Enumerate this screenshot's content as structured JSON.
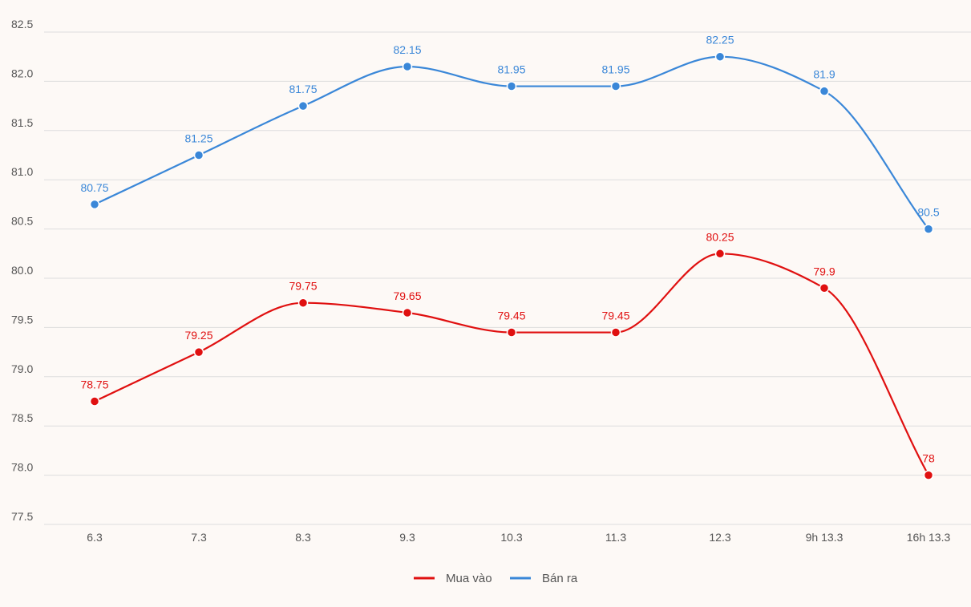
{
  "chart_data": {
    "type": "line",
    "categories": [
      "6.3",
      "7.3",
      "8.3",
      "9.3",
      "10.3",
      "11.3",
      "12.3",
      "9h 13.3",
      "16h 13.3"
    ],
    "series": [
      {
        "name": "Mua vào",
        "color": "#e01010",
        "values": [
          78.75,
          79.25,
          79.75,
          79.65,
          79.45,
          79.45,
          80.25,
          79.9,
          78
        ],
        "labels": [
          "78.75",
          "79.25",
          "79.75",
          "79.65",
          "79.45",
          "79.45",
          "80.25",
          "79.9",
          "78"
        ]
      },
      {
        "name": "Bán ra",
        "color": "#3a87d8",
        "values": [
          80.75,
          81.25,
          81.75,
          82.15,
          81.95,
          81.95,
          82.25,
          81.9,
          80.5
        ],
        "labels": [
          "80.75",
          "81.25",
          "81.75",
          "82.15",
          "81.95",
          "81.95",
          "82.25",
          "81.9",
          "80.5"
        ]
      }
    ],
    "y_ticks": [
      "82.5",
      "82.0",
      "81.5",
      "81.0",
      "80.5",
      "80.0",
      "79.5",
      "79.0",
      "78.5",
      "78.0",
      "77.5"
    ],
    "ylim": [
      77.5,
      82.5
    ],
    "grid": true,
    "legend_position": "bottom-center",
    "title": "",
    "xlabel": "",
    "ylabel": ""
  }
}
